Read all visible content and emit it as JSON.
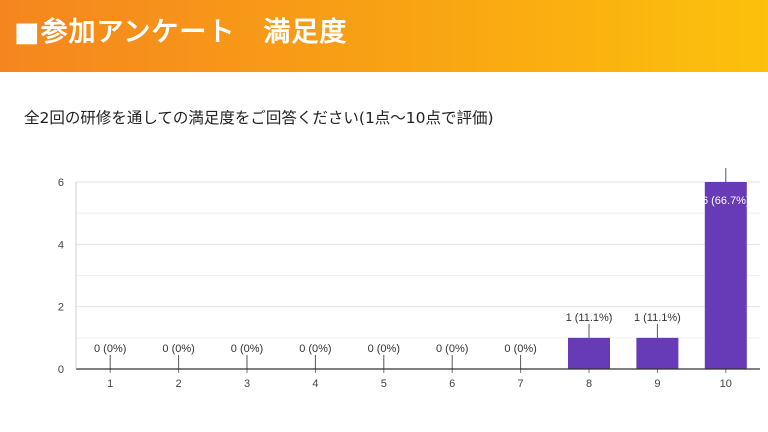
{
  "header": {
    "title": "■参加アンケート　満足度"
  },
  "question": "全2回の研修を通しての満足度をご回答ください(1点〜10点で評価)",
  "colors": {
    "bar": "#673ab7",
    "banner_start": "#f5861f",
    "banner_end": "#fcc10c"
  },
  "chart_data": {
    "type": "bar",
    "categories": [
      "1",
      "2",
      "3",
      "4",
      "5",
      "6",
      "7",
      "8",
      "9",
      "10"
    ],
    "values": [
      0,
      0,
      0,
      0,
      0,
      0,
      0,
      1,
      1,
      6
    ],
    "data_labels": [
      "0 (0%)",
      "0 (0%)",
      "0 (0%)",
      "0 (0%)",
      "0 (0%)",
      "0 (0%)",
      "0 (0%)",
      "1 (11.1%)",
      "1 (11.1%)",
      "6 (66.7%)"
    ],
    "yticks": [
      0,
      2,
      4,
      6
    ],
    "ylim": [
      0,
      6
    ],
    "grid": true,
    "title": "",
    "xlabel": "",
    "ylabel": ""
  }
}
